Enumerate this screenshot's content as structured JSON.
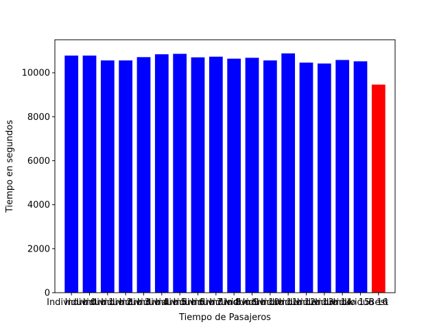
{
  "chart_data": {
    "type": "bar",
    "title": "",
    "xlabel": "Tiempo de Pasajeros",
    "ylabel": "Tiempo en segundos",
    "ylim": [
      0,
      11500
    ],
    "yticks": [
      0,
      2000,
      4000,
      6000,
      8000,
      10000
    ],
    "grid": false,
    "categories": [
      "Individuo 0",
      "Individuo 1",
      "Individuo 2",
      "Individuo 3",
      "Individuo 4",
      "Individuo 5",
      "Individuo 6",
      "Individuo 7",
      "Individuo 8",
      "Individuo 9",
      "Individuo 10",
      "Individuo 11",
      "Individuo 12",
      "Individuo 13",
      "Individuo 14",
      "Individuo 15",
      "Individuo 16",
      "Best"
    ],
    "values": [
      10780,
      10780,
      10560,
      10560,
      10710,
      10840,
      10860,
      10700,
      10730,
      10640,
      10680,
      10560,
      10880,
      10460,
      10420,
      10580,
      10520,
      9460
    ],
    "colors": {
      "bar": "#0000ff",
      "highlight": "#ff0000",
      "highlight_index": 17
    }
  }
}
